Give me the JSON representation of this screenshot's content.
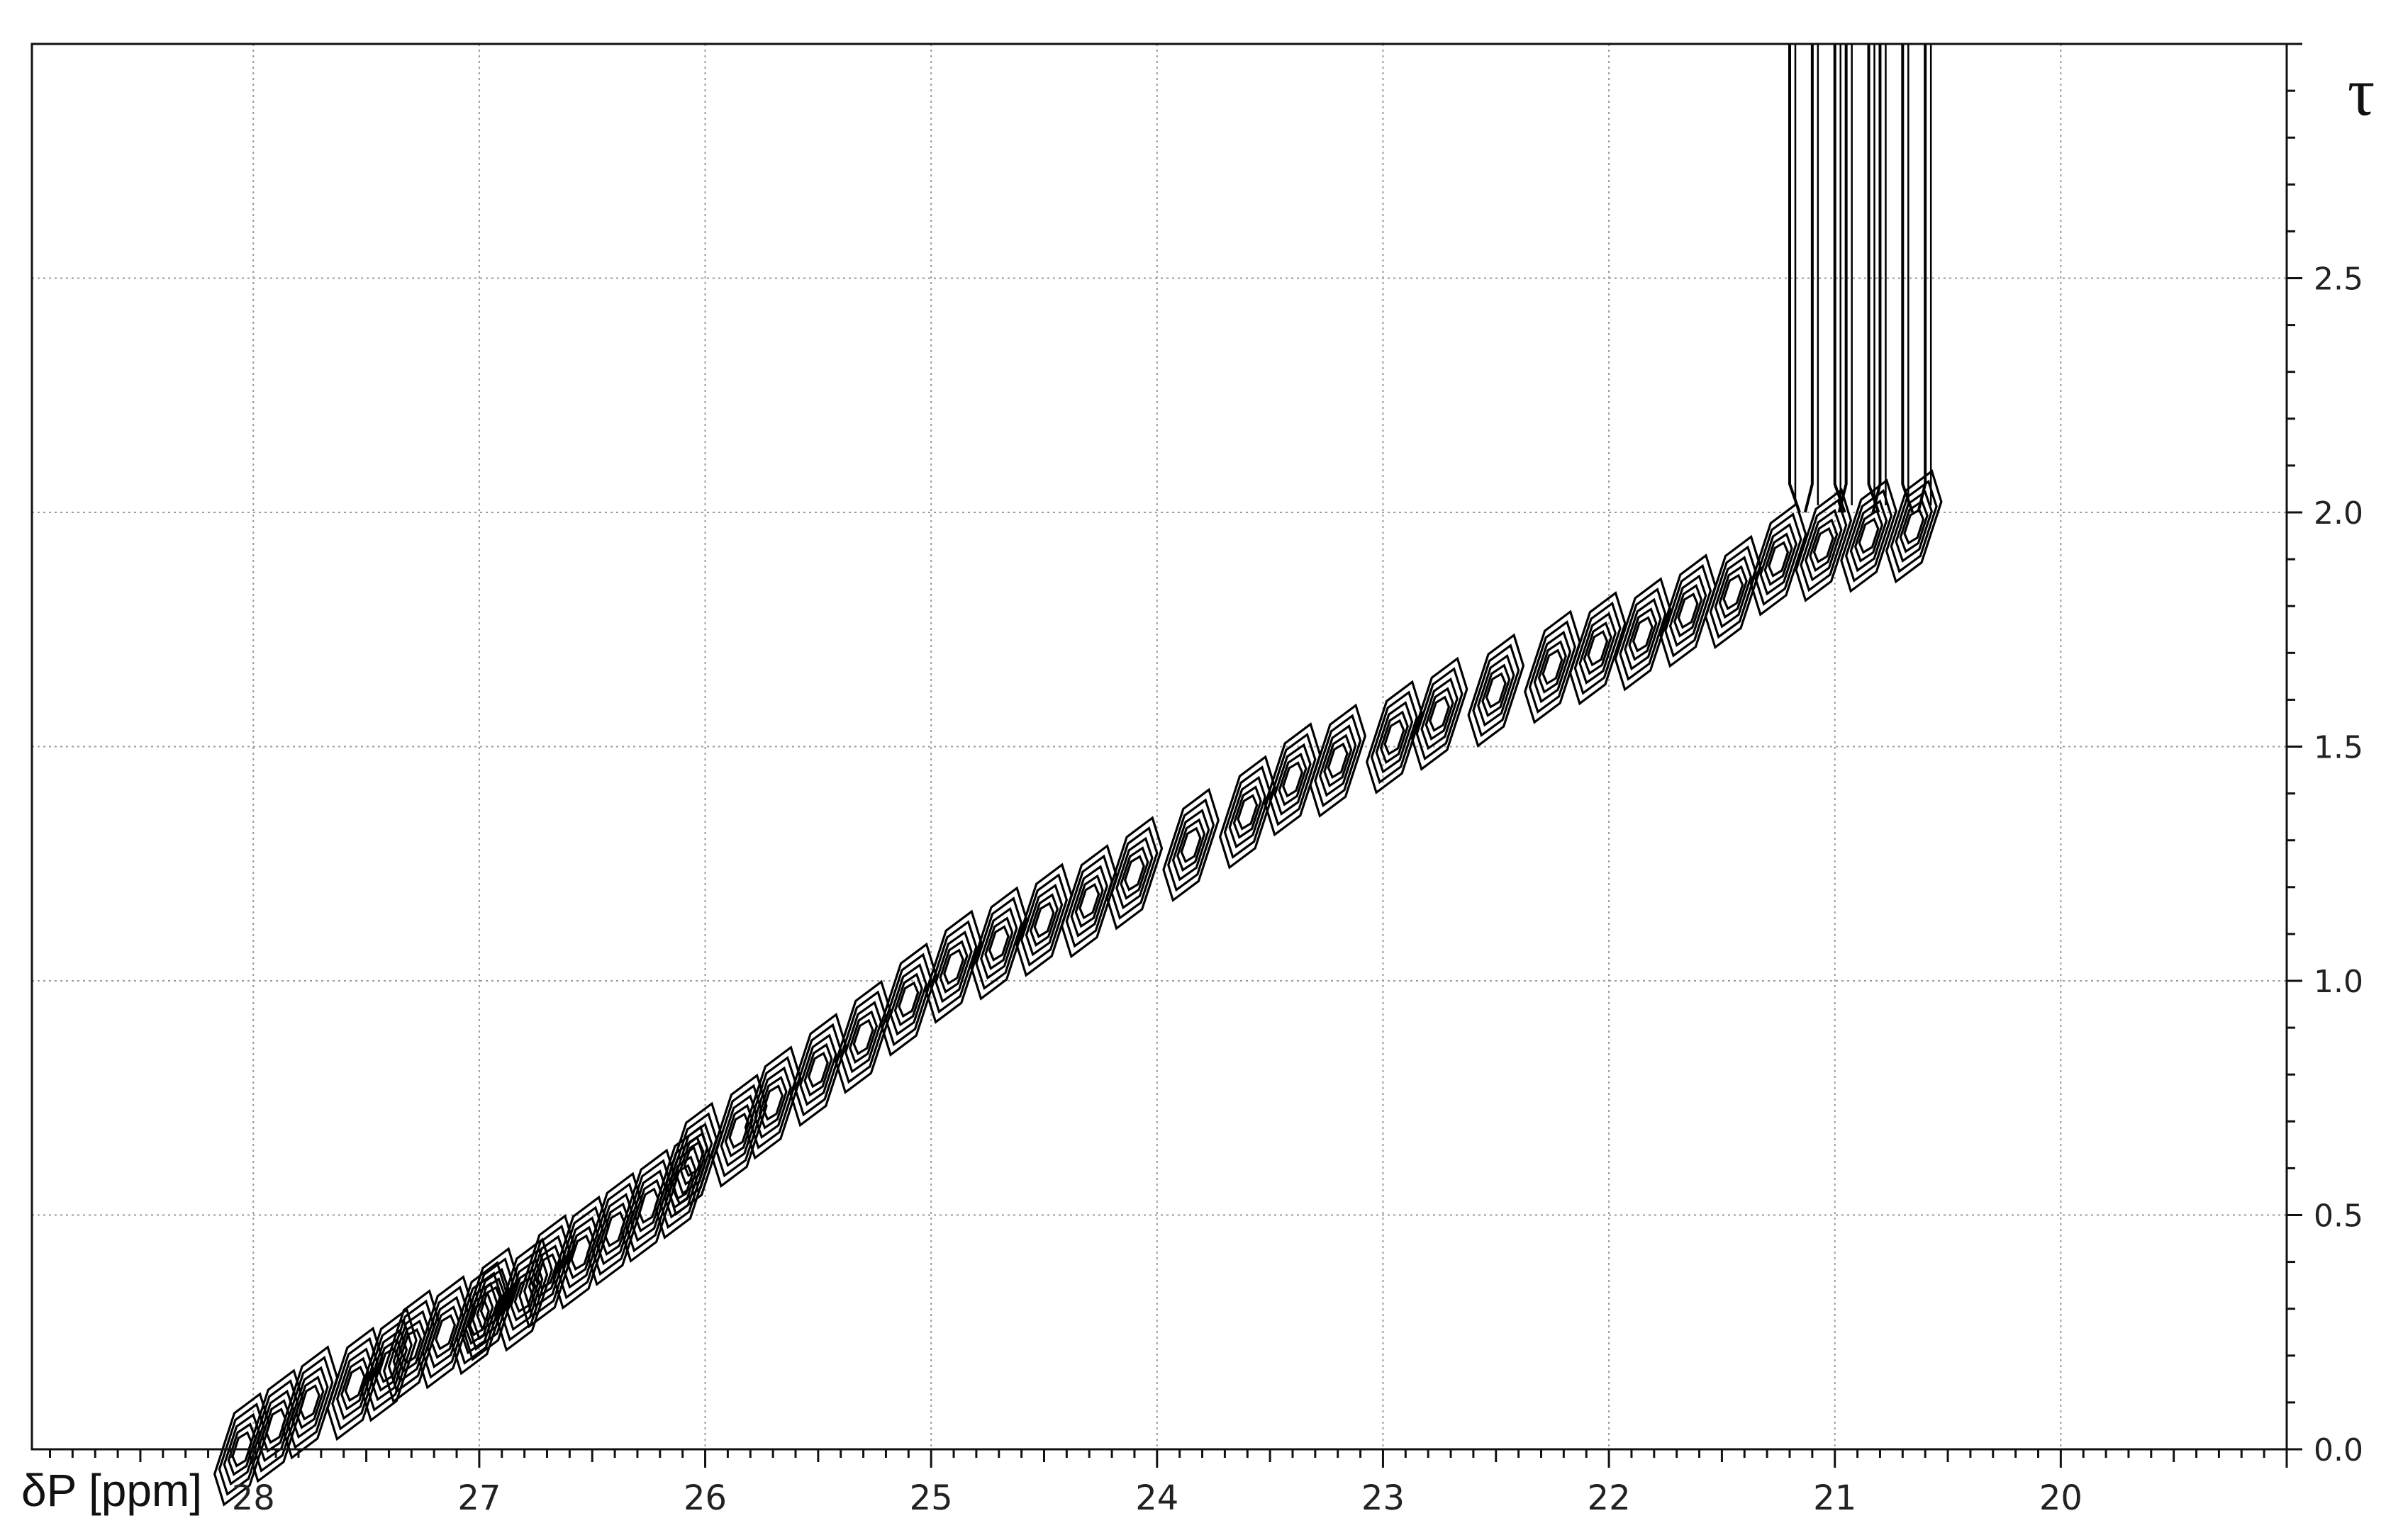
{
  "chart_data": {
    "type": "contour",
    "xlabel": "δP [ppm]",
    "ylabel": "τ",
    "x_axis": {
      "min": 28.98,
      "max": 19.0,
      "reversed": true,
      "tick_labels": [
        "28",
        "27",
        "26",
        "25",
        "24",
        "23",
        "22",
        "21",
        "20"
      ],
      "tick_values": [
        28,
        27,
        26,
        25,
        24,
        23,
        22,
        21,
        20
      ],
      "minor_tick_step": 0.1
    },
    "y_axis": {
      "min": 0.0,
      "max": 3.0,
      "position": "right",
      "tick_labels": [
        "0.0",
        "0.5",
        "1.0",
        "1.5",
        "2.0",
        "2.5"
      ],
      "tick_values": [
        0.0,
        0.5,
        1.0,
        1.5,
        2.0,
        2.5
      ],
      "minor_tick_step": 0.1
    },
    "grid": true,
    "line_color": "#000000",
    "grid_color": "#9a9a9a",
    "series": [
      {
        "x": [
          28.05,
          27.9,
          27.75,
          27.55,
          27.4,
          27.3,
          27.15,
          27.0,
          26.95,
          26.8,
          26.7,
          26.55,
          26.4,
          26.25,
          26.1,
          26.05,
          25.85,
          25.7,
          25.5,
          25.3,
          25.1,
          24.9,
          24.7,
          24.5,
          24.3,
          24.1,
          23.85,
          23.6,
          23.4,
          23.2,
          22.95,
          22.75,
          22.5,
          22.25,
          22.05,
          21.85,
          21.65,
          21.45,
          21.25,
          21.05,
          20.85,
          20.65
        ],
        "y": [
          0.0,
          0.05,
          0.1,
          0.14,
          0.18,
          0.22,
          0.25,
          0.28,
          0.31,
          0.33,
          0.38,
          0.42,
          0.47,
          0.52,
          0.57,
          0.62,
          0.68,
          0.74,
          0.81,
          0.88,
          0.96,
          1.03,
          1.08,
          1.13,
          1.17,
          1.23,
          1.29,
          1.36,
          1.43,
          1.47,
          1.52,
          1.57,
          1.62,
          1.67,
          1.71,
          1.74,
          1.79,
          1.83,
          1.9,
          1.93,
          1.95,
          1.97
        ]
      }
    ],
    "vertical_traces": {
      "x": [
        21.2,
        21.1,
        21.0,
        20.95,
        20.85,
        20.8,
        20.7,
        20.6
      ],
      "y_start": 2.0,
      "y_end": 3.0
    }
  }
}
